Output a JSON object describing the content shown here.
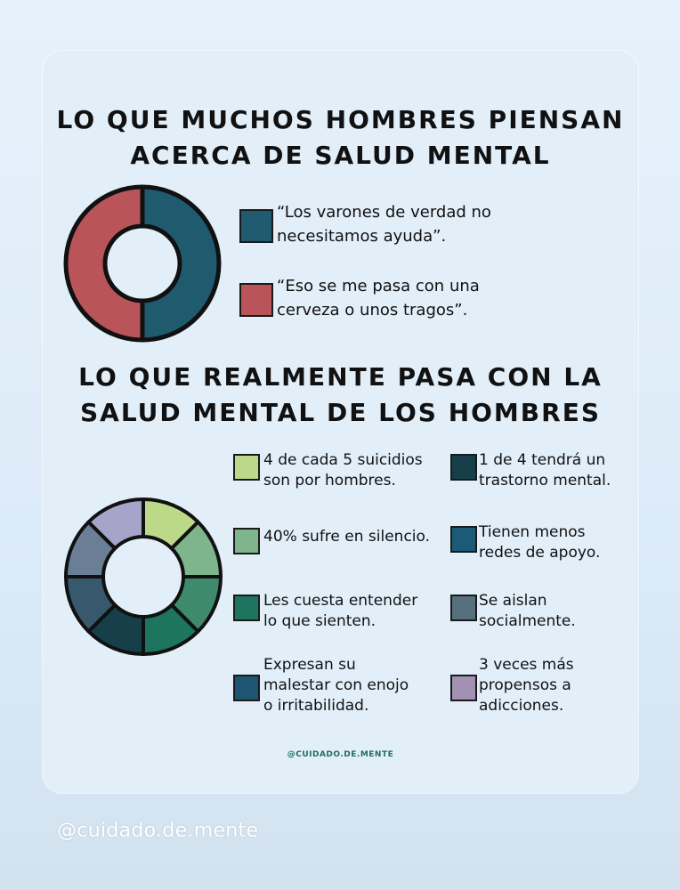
{
  "section1": {
    "title_lines": [
      "LO QUE MUCHOS HOMBRES PIENSAN",
      "ACERCA DE SALUD MENTAL"
    ],
    "legend": [
      {
        "lines": [
          "“Los varones de verdad no",
          "necesitamos ayuda”."
        ],
        "color": "#1f5a6e"
      },
      {
        "lines": [
          "“Eso se me pasa con una",
          "cerveza o unos tragos”."
        ],
        "color": "#b9555a"
      }
    ]
  },
  "section2": {
    "title_lines": [
      "LO QUE REALMENTE PASA CON LA",
      "SALUD MENTAL DE LOS HOMBRES"
    ],
    "legend_left": [
      {
        "lines": [
          "4 de cada 5 suicidios",
          "son por hombres."
        ],
        "color": "#bcd98a"
      },
      {
        "lines": [
          "40% sufre en silencio."
        ],
        "color": "#7fb58c"
      },
      {
        "lines": [
          "Les cuesta entender",
          "lo que sienten."
        ],
        "color": "#1d7560"
      },
      {
        "lines": [
          "Expresan su",
          "malestar con enojo",
          "o irritabilidad."
        ],
        "color": "#1e5570"
      }
    ],
    "legend_right": [
      {
        "lines": [
          "1 de 4 tendrá un",
          "trastorno mental."
        ],
        "color": "#163f4a"
      },
      {
        "lines": [
          "Tienen menos",
          " redes de apoyo."
        ],
        "color": "#1b5b78"
      },
      {
        "lines": [
          "Se aislan",
          "socialmente."
        ],
        "color": "#56707d"
      },
      {
        "lines": [
          "3 veces más",
          "propensos a",
          "adicciones."
        ],
        "color": "#a391b1"
      }
    ]
  },
  "handle": "@CUIDADO.DE.MENTE",
  "watermark": "@cuidado.de.mente"
}
